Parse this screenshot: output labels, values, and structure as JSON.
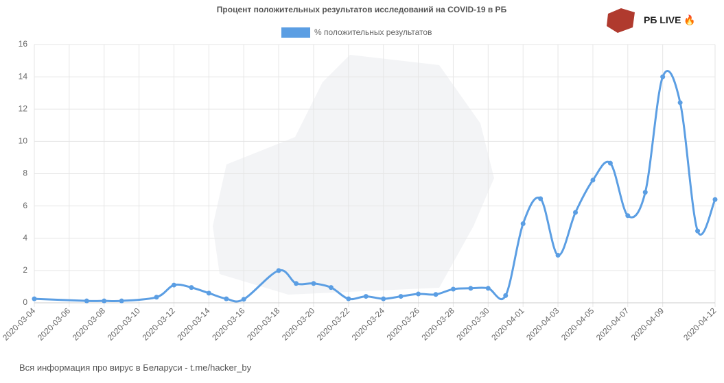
{
  "brand": "РБ LIVE 🔥",
  "footer": "Вся информация про вирус в Беларуси - t.me/hacker_by",
  "chart_data": {
    "type": "line",
    "title": "Процент положительных результатов исследований на COVID-19 в РБ",
    "x": [
      "2020-03-04",
      "2020-03-07",
      "2020-03-08",
      "2020-03-09",
      "2020-03-11",
      "2020-03-12",
      "2020-03-13",
      "2020-03-14",
      "2020-03-15",
      "2020-03-16",
      "2020-03-18",
      "2020-03-19",
      "2020-03-20",
      "2020-03-21",
      "2020-03-22",
      "2020-03-23",
      "2020-03-24",
      "2020-03-25",
      "2020-03-26",
      "2020-03-27",
      "2020-03-28",
      "2020-03-29",
      "2020-03-30",
      "2020-03-31",
      "2020-04-01",
      "2020-04-02",
      "2020-04-03",
      "2020-04-04",
      "2020-04-05",
      "2020-04-06",
      "2020-04-07",
      "2020-04-08",
      "2020-04-09",
      "2020-04-10",
      "2020-04-11",
      "2020-04-12"
    ],
    "series": [
      {
        "name": "% положительных результатов",
        "color": "#5b9ee3",
        "values": [
          0.25,
          0.12,
          0.12,
          0.12,
          0.35,
          1.1,
          0.95,
          0.6,
          0.25,
          0.22,
          2.0,
          1.2,
          1.2,
          0.95,
          0.25,
          0.4,
          0.25,
          0.4,
          0.55,
          0.52,
          0.85,
          0.9,
          0.9,
          0.45,
          4.9,
          6.45,
          2.95,
          5.6,
          7.6,
          8.65,
          5.4,
          6.85,
          14.0,
          12.4,
          4.45,
          6.4
        ]
      }
    ],
    "xlim": [
      "2020-03-04",
      "2020-04-12"
    ],
    "xticks": [
      "2020-03-04",
      "2020-03-06",
      "2020-03-08",
      "2020-03-10",
      "2020-03-12",
      "2020-03-14",
      "2020-03-16",
      "2020-03-18",
      "2020-03-20",
      "2020-03-22",
      "2020-03-24",
      "2020-03-26",
      "2020-03-28",
      "2020-03-30",
      "2020-04-01",
      "2020-04-03",
      "2020-04-05",
      "2020-04-07",
      "2020-04-09",
      "2020-04-12"
    ],
    "ylim": [
      0,
      16
    ],
    "yticks": [
      0,
      2,
      4,
      6,
      8,
      10,
      12,
      14,
      16
    ],
    "grid": true
  }
}
